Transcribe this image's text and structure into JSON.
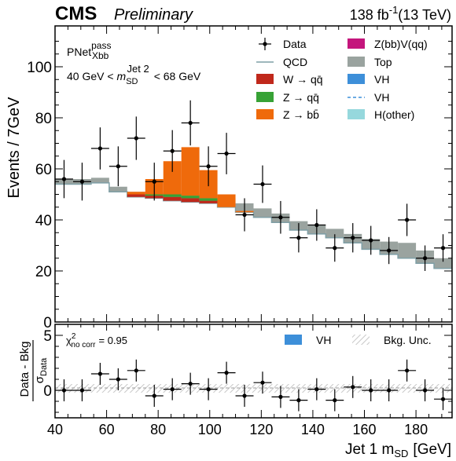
{
  "header": {
    "experiment": "CMS",
    "status": "Preliminary",
    "lumi": "138 fb",
    "lumi_exp": "-1",
    "energy": "(13 TeV)"
  },
  "category": {
    "tagger": "PNet",
    "tagger_sup": "pass",
    "tagger_sub": "Xbb",
    "mass_low": "40 GeV <",
    "mass_var": "m",
    "mass_var_sub": "SD",
    "mass_var_sup": "Jet 2",
    "mass_high": "< 68 GeV"
  },
  "colors": {
    "qcd": "#7f9fa6",
    "wqq": "#c0281b",
    "zqq": "#37a236",
    "zbb": "#ef6a0b",
    "zbbvqq": "#c4157c",
    "top": "#9aa39f",
    "vh": "#3d8fd9",
    "hother": "#96d8dd",
    "unc": "#bdbdbd"
  },
  "legend": [
    {
      "label": "Data",
      "style": "data",
      "color": "#000000"
    },
    {
      "label": "Z(bb)V(qq)",
      "style": "box",
      "color": "#c4157c"
    },
    {
      "label": "QCD",
      "style": "line",
      "color": "#7f9fa6"
    },
    {
      "label": "Top",
      "style": "box",
      "color": "#9aa39f"
    },
    {
      "label": "W → qq̄",
      "style": "box",
      "color": "#c0281b"
    },
    {
      "label": "VH",
      "style": "box",
      "color": "#3d8fd9"
    },
    {
      "label": "Z → qq̄",
      "style": "box",
      "color": "#37a236"
    },
    {
      "label": "VH",
      "style": "dash",
      "color": "#3d8fd9"
    },
    {
      "label": "Z → bb̄",
      "style": "box",
      "color": "#ef6a0b"
    },
    {
      "label": "H(other)",
      "style": "box",
      "color": "#96d8dd"
    }
  ],
  "ratio_panel": {
    "chi2_label": "χ",
    "chi2_sup": "2",
    "chi2_sub": "no corr",
    "chi2_value": "= 0.95",
    "legend": [
      {
        "label": "VH",
        "style": "box",
        "color": "#3d8fd9"
      },
      {
        "label": "Bkg. Unc.",
        "style": "hatch",
        "color": "#bdbdbd"
      }
    ]
  },
  "chart_data": [
    {
      "type": "stacked-histogram",
      "ylabel": "Events / 7GeV",
      "xlim": [
        40,
        194
      ],
      "ylim": [
        0,
        116
      ],
      "yticks": [
        0,
        20,
        40,
        60,
        80,
        100
      ],
      "bin_edges": [
        40,
        47,
        54,
        61,
        68,
        75,
        82,
        89,
        96,
        103,
        110,
        117,
        124,
        131,
        138,
        145,
        152,
        159,
        166,
        173,
        180,
        187,
        194
      ],
      "background": {
        "qcd": [
          54,
          54,
          54.5,
          51,
          49,
          48.5,
          47.5,
          47,
          46.5,
          45,
          43,
          41,
          39,
          36,
          34.5,
          33,
          31,
          28.5,
          26.5,
          25,
          23,
          21
        ],
        "top": [
          2,
          2,
          2,
          2,
          2,
          2.5,
          3,
          3.5,
          3.5,
          3.5,
          3.5,
          3.5,
          3.5,
          3.5,
          3.5,
          3.5,
          3.5,
          4,
          5,
          6,
          5,
          4
        ]
      },
      "signal_stack": {
        "wqq": [
          0,
          0,
          0,
          0,
          1,
          1,
          1.5,
          1.5,
          1,
          0,
          0,
          0,
          0,
          0,
          0,
          0,
          0,
          0,
          0,
          0,
          0,
          0
        ],
        "zqq": [
          0,
          0,
          0,
          0,
          0,
          0.5,
          1,
          1,
          1,
          0,
          0,
          0,
          0,
          0,
          0,
          0,
          0,
          0,
          0,
          0,
          0,
          0
        ],
        "zbb": [
          0,
          0,
          0,
          0,
          1,
          6,
          13,
          19,
          11,
          5,
          0.5,
          0,
          0,
          0,
          0,
          0,
          0,
          0,
          0,
          0,
          0,
          0
        ]
      },
      "data": {
        "x": [
          43.5,
          50.5,
          57.5,
          64.5,
          71.5,
          78.5,
          85.5,
          92.5,
          99.5,
          106.5,
          113.5,
          120.5,
          127.5,
          134.5,
          141.5,
          148.5,
          155.5,
          162.5,
          169.5,
          176.5,
          183.5,
          190.5
        ],
        "y": [
          56,
          55,
          68,
          61,
          72,
          55,
          67,
          78,
          61,
          66,
          42,
          54,
          41,
          33,
          38,
          29,
          33,
          32,
          28,
          40,
          25,
          29
        ]
      }
    },
    {
      "type": "scatter",
      "ylabel": "Data - Bkg",
      "ylabel_denominator": "σ",
      "ylabel_denominator_sub": "Data",
      "xlabel": "Jet 1 m",
      "xlabel_sub": "SD",
      "xlabel_unit": "[GeV]",
      "xlim": [
        40,
        194
      ],
      "ylim": [
        -2.5,
        6
      ],
      "yticks": [
        0,
        5
      ],
      "xticks": [
        40,
        60,
        80,
        100,
        120,
        140,
        160,
        180
      ],
      "x": [
        43.5,
        50.5,
        57.5,
        64.5,
        71.5,
        78.5,
        85.5,
        92.5,
        99.5,
        106.5,
        113.5,
        120.5,
        127.5,
        134.5,
        141.5,
        148.5,
        155.5,
        162.5,
        169.5,
        176.5,
        183.5,
        190.5
      ],
      "y": [
        0,
        0,
        1.5,
        1,
        1.8,
        -0.5,
        0.1,
        0.6,
        0.1,
        1.6,
        -0.5,
        0.7,
        -0.6,
        -0.9,
        0.1,
        -0.9,
        0.3,
        0,
        0,
        1.8,
        0,
        -0.8
      ]
    }
  ]
}
